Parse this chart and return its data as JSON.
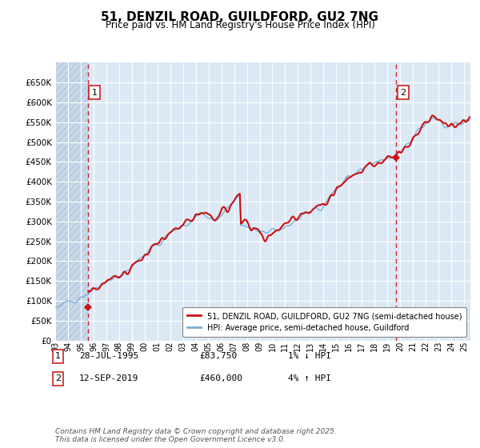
{
  "title": "51, DENZIL ROAD, GUILDFORD, GU2 7NG",
  "subtitle": "Price paid vs. HM Land Registry's House Price Index (HPI)",
  "ylim": [
    0,
    700000
  ],
  "yticks": [
    0,
    50000,
    100000,
    150000,
    200000,
    250000,
    300000,
    350000,
    400000,
    450000,
    500000,
    550000,
    600000,
    650000
  ],
  "bg_color": "#dce9f5",
  "grid_color": "#ffffff",
  "sale1_year": 1995.57,
  "sale1_price": 83750,
  "sale2_year": 2019.7,
  "sale2_price": 460000,
  "xmin": 1993,
  "xmax": 2025.5,
  "legend_line1": "51, DENZIL ROAD, GUILDFORD, GU2 7NG (semi-detached house)",
  "legend_line2": "HPI: Average price, semi-detached house, Guildford",
  "footer": "Contains HM Land Registry data © Crown copyright and database right 2025.\nThis data is licensed under the Open Government Licence v3.0.",
  "label1_date": "28-JUL-1995",
  "label1_price": "£83,750",
  "label1_hpi": "1% ↓ HPI",
  "label2_date": "12-SEP-2019",
  "label2_price": "£460,000",
  "label2_hpi": "4% ↑ HPI"
}
